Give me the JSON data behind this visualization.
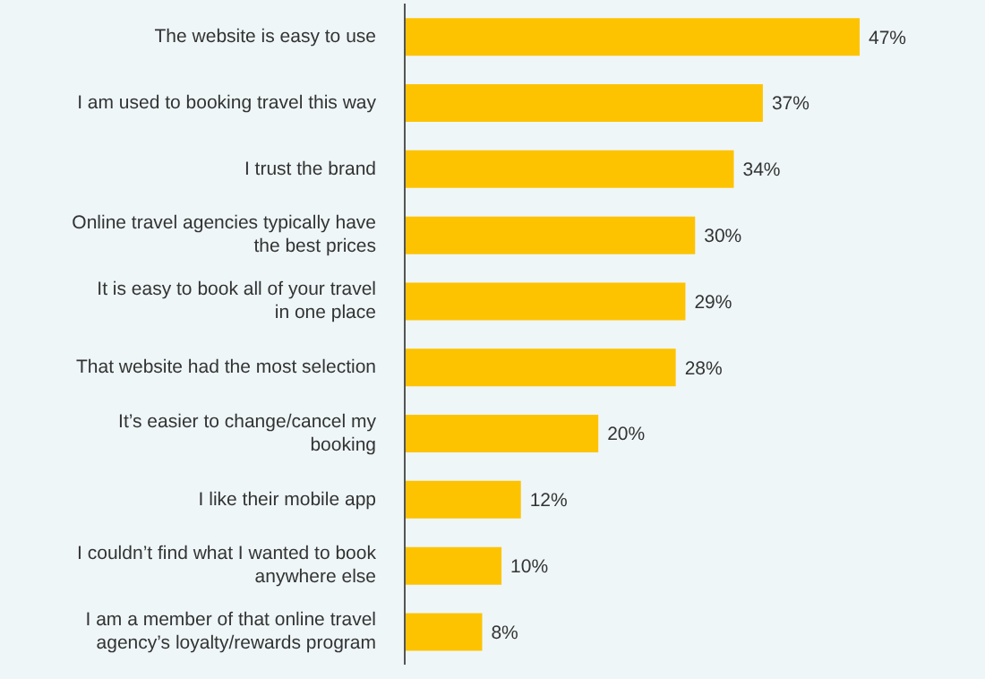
{
  "chart_data": {
    "type": "bar",
    "orientation": "horizontal",
    "categories": [
      "The website is easy to use",
      "I am used to booking travel this way",
      "I trust the brand",
      "Online travel agencies typically have the best prices",
      "It is easy to book all of your travel in one place",
      "That website had the most selection",
      "It’s easier to change/cancel my booking",
      "I like their mobile app",
      "I couldn’t find what I wanted to book anywhere else",
      "I am a member of that online travel agency’s loyalty/rewards program"
    ],
    "values": [
      47,
      37,
      34,
      30,
      29,
      28,
      20,
      12,
      10,
      8
    ],
    "value_labels": [
      "47%",
      "37%",
      "34%",
      "30%",
      "29%",
      "28%",
      "20%",
      "12%",
      "10%",
      "8%"
    ],
    "color": "#fdc300"
  }
}
